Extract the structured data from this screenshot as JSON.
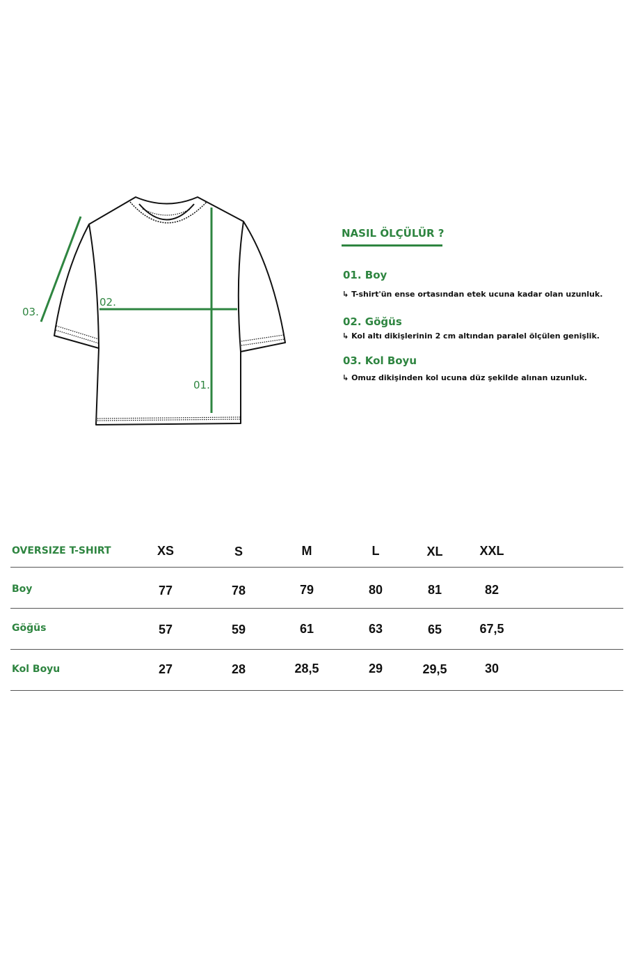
{
  "guide": {
    "title": "NASIL ÖLÇÜLÜR ?",
    "items": [
      {
        "heading": "01. Boy",
        "description": "T-shirt'ün ense ortasından etek ucuna kadar olan uzunluk."
      },
      {
        "heading": "02. Göğüs",
        "description": "Kol altı dikişlerinin 2 cm altından paralel ölçülen genişlik."
      },
      {
        "heading": "03. Kol Boyu",
        "description": "Omuz dikişinden kol ucuna düz şekilde alınan uzunluk."
      }
    ],
    "arrow_icon": "↳"
  },
  "diagram": {
    "labels": {
      "boy": "01.",
      "gogus": "02.",
      "kol": "03."
    },
    "accent_color": "#2e8540"
  },
  "table": {
    "title": "OVERSIZE T-SHIRT",
    "sizes": [
      "XS",
      "S",
      "M",
      "L",
      "XL",
      "XXL"
    ],
    "rows": [
      {
        "label": "Boy",
        "values": [
          "77",
          "78",
          "79",
          "80",
          "81",
          "82"
        ]
      },
      {
        "label": "Göğüs",
        "values": [
          "57",
          "59",
          "61",
          "63",
          "65",
          "67,5"
        ]
      },
      {
        "label": "Kol Boyu",
        "values": [
          "27",
          "28",
          "28,5",
          "29",
          "29,5",
          "30"
        ]
      }
    ]
  }
}
